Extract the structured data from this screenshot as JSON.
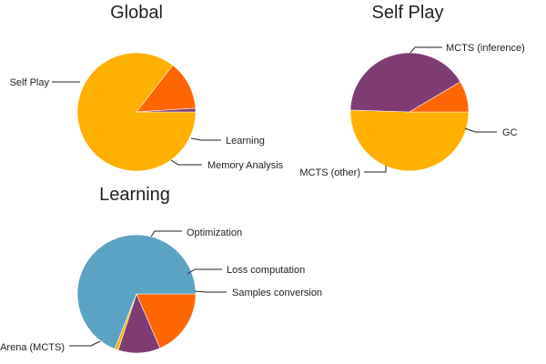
{
  "chart_data": [
    {
      "type": "pie",
      "title": "Global",
      "slices": [
        {
          "label": "Self Play",
          "value": 85.5,
          "color": "#ffb000"
        },
        {
          "label": "Learning",
          "value": 13.5,
          "color": "#ff6600"
        },
        {
          "label": "Memory Analysis",
          "value": 1.0,
          "color": "#7f3c74"
        }
      ]
    },
    {
      "type": "pie",
      "title": "Self Play",
      "slices": [
        {
          "label": "MCTS (inference)",
          "value": 50.5,
          "color": "#ffb000"
        },
        {
          "label": "MCTS (other)",
          "value": 41.0,
          "color": "#7f3c74"
        },
        {
          "label": "GC",
          "value": 8.5,
          "color": "#ff6600"
        }
      ]
    },
    {
      "type": "pie",
      "title": "Learning",
      "slices": [
        {
          "label": "Optimization",
          "value": 18.5,
          "color": "#ff6600"
        },
        {
          "label": "Loss computation",
          "value": 11.5,
          "color": "#7f3c74"
        },
        {
          "label": "Samples conversion",
          "value": 1.0,
          "color": "#ffb000"
        },
        {
          "label": "Arena (MCTS)",
          "value": 69.0,
          "color": "#5ba3c4"
        }
      ]
    }
  ]
}
